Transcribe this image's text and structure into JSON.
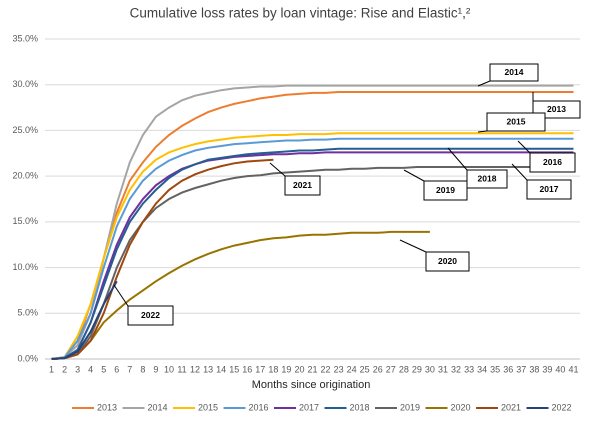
{
  "chart_data": {
    "type": "line",
    "title": "Cumulative loss rates by loan vintage: Rise and Elastic¹,²",
    "x_label": "Months since origination",
    "categories": [
      1,
      2,
      3,
      4,
      5,
      6,
      7,
      8,
      9,
      10,
      11,
      12,
      13,
      14,
      15,
      16,
      17,
      18,
      19,
      20,
      21,
      22,
      23,
      24,
      25,
      26,
      27,
      28,
      29,
      30,
      31,
      32,
      33,
      34,
      35,
      36,
      37,
      38,
      39,
      40,
      41
    ],
    "ylim": [
      0,
      35
    ],
    "yticks": [
      {
        "value": 0,
        "label": "0.0%"
      },
      {
        "value": 5,
        "label": "5.0%"
      },
      {
        "value": 10,
        "label": "10.0%"
      },
      {
        "value": 15,
        "label": "15.0%"
      },
      {
        "value": 20,
        "label": "20.0%"
      },
      {
        "value": 25,
        "label": "25.0%"
      },
      {
        "value": 30,
        "label": "30.0%"
      },
      {
        "value": 35,
        "label": "35.0%"
      }
    ],
    "grid": true,
    "legend": "bottom",
    "series": [
      {
        "name": "2013",
        "color": "#ed7d31",
        "values": [
          0,
          0.2,
          2,
          6,
          11,
          16,
          19.5,
          21.5,
          23.2,
          24.5,
          25.5,
          26.3,
          27,
          27.5,
          27.9,
          28.2,
          28.5,
          28.7,
          28.9,
          29,
          29.1,
          29.1,
          29.2,
          29.2,
          29.2,
          29.2,
          29.2,
          29.2,
          29.2,
          29.2,
          29.2,
          29.2,
          29.2,
          29.2,
          29.2,
          29.2,
          29.2,
          29.2,
          29.2,
          29.2,
          29.2
        ]
      },
      {
        "name": "2014",
        "color": "#a5a5a5",
        "values": [
          0,
          0.2,
          1.5,
          5,
          11,
          17,
          21.5,
          24.5,
          26.5,
          27.5,
          28.3,
          28.8,
          29.1,
          29.4,
          29.6,
          29.7,
          29.8,
          29.8,
          29.9,
          29.9,
          29.9,
          29.9,
          29.9,
          29.9,
          29.9,
          29.9,
          29.9,
          29.9,
          29.9,
          29.9,
          29.9,
          29.9,
          29.9,
          29.9,
          29.9,
          29.9,
          29.9,
          29.9,
          29.9,
          29.9,
          29.9
        ]
      },
      {
        "name": "2015",
        "color": "#ffc000",
        "values": [
          0,
          0.2,
          2.5,
          6,
          11,
          15.5,
          18.5,
          20.5,
          21.8,
          22.6,
          23.1,
          23.5,
          23.8,
          24,
          24.2,
          24.3,
          24.4,
          24.5,
          24.5,
          24.6,
          24.6,
          24.6,
          24.7,
          24.7,
          24.7,
          24.7,
          24.7,
          24.7,
          24.7,
          24.7,
          24.7,
          24.7,
          24.7,
          24.7,
          24.7,
          24.7,
          24.7,
          24.7,
          24.7,
          24.7,
          24.7
        ]
      },
      {
        "name": "2016",
        "color": "#5b9bd5",
        "values": [
          0,
          0.2,
          2,
          5,
          10,
          14.5,
          17.5,
          19.5,
          20.8,
          21.7,
          22.3,
          22.8,
          23.1,
          23.3,
          23.5,
          23.6,
          23.7,
          23.8,
          23.9,
          23.9,
          24,
          24,
          24.1,
          24.1,
          24.1,
          24.1,
          24.1,
          24.1,
          24.1,
          24.1,
          24.1,
          24.1,
          24.1,
          24.1,
          24.1,
          24.1,
          24.1,
          24.1,
          24.1,
          24.1,
          24.1
        ]
      },
      {
        "name": "2017",
        "color": "#7030a0",
        "values": [
          0,
          0.1,
          1,
          4,
          8.5,
          12.5,
          15.5,
          17.5,
          19,
          20,
          20.8,
          21.3,
          21.7,
          21.9,
          22.1,
          22.2,
          22.3,
          22.4,
          22.4,
          22.5,
          22.5,
          22.6,
          22.6,
          22.6,
          22.6,
          22.6,
          22.6,
          22.6,
          22.6,
          22.6,
          22.6,
          22.6,
          22.6,
          22.6,
          22.6,
          22.6,
          22.6,
          22.6,
          22.6,
          22.6,
          22.6
        ]
      },
      {
        "name": "2018",
        "color": "#255e91",
        "values": [
          0,
          0.1,
          1,
          4,
          8,
          12,
          15,
          17,
          18.5,
          19.8,
          20.7,
          21.3,
          21.8,
          22,
          22.2,
          22.4,
          22.5,
          22.6,
          22.7,
          22.8,
          22.8,
          22.9,
          23,
          23,
          23,
          23,
          23,
          23,
          23,
          23,
          23,
          23,
          23,
          23,
          23,
          23,
          23,
          23,
          23,
          23,
          23
        ]
      },
      {
        "name": "2019",
        "color": "#636363",
        "values": [
          0,
          0.1,
          0.5,
          2.5,
          6,
          10,
          13,
          15,
          16.5,
          17.5,
          18.2,
          18.7,
          19.1,
          19.5,
          19.8,
          20,
          20.1,
          20.3,
          20.4,
          20.5,
          20.6,
          20.7,
          20.7,
          20.8,
          20.8,
          20.9,
          20.9,
          20.9,
          21,
          21,
          21,
          21,
          21,
          21,
          21,
          21,
          21,
          21,
          null,
          null,
          null
        ]
      },
      {
        "name": "2020",
        "color": "#997300",
        "values": [
          0,
          0.1,
          0.5,
          2,
          4,
          5.3,
          6.5,
          7.5,
          8.5,
          9.4,
          10.2,
          10.9,
          11.5,
          12,
          12.4,
          12.7,
          13,
          13.2,
          13.3,
          13.5,
          13.6,
          13.6,
          13.7,
          13.8,
          13.8,
          13.8,
          13.9,
          13.9,
          13.9,
          13.9,
          null,
          null,
          null,
          null,
          null,
          null,
          null,
          null,
          null,
          null,
          null
        ]
      },
      {
        "name": "2021",
        "color": "#9e480e",
        "values": [
          0,
          0.1,
          0.5,
          2,
          5,
          9,
          12.5,
          15,
          17,
          18.5,
          19.5,
          20.2,
          20.7,
          21.1,
          21.4,
          21.6,
          21.7,
          21.8,
          null,
          null,
          null,
          null,
          null,
          null,
          null,
          null,
          null,
          null,
          null,
          null,
          null,
          null,
          null,
          null,
          null,
          null,
          null,
          null,
          null,
          null,
          null
        ]
      },
      {
        "name": "2022",
        "color": "#264478",
        "values": [
          0,
          0.1,
          0.8,
          3,
          6,
          8.5,
          null,
          null,
          null,
          null,
          null,
          null,
          null,
          null,
          null,
          null,
          null,
          null,
          null,
          null,
          null,
          null,
          null,
          null,
          null,
          null,
          null,
          null,
          null,
          null,
          null,
          null,
          null,
          null,
          null,
          null,
          null,
          null,
          null,
          null,
          null
        ]
      }
    ],
    "annotations": [
      "2014",
      "2013",
      "2015",
      "2016",
      "2017",
      "2018",
      "2019",
      "2020",
      "2021",
      "2022"
    ]
  }
}
